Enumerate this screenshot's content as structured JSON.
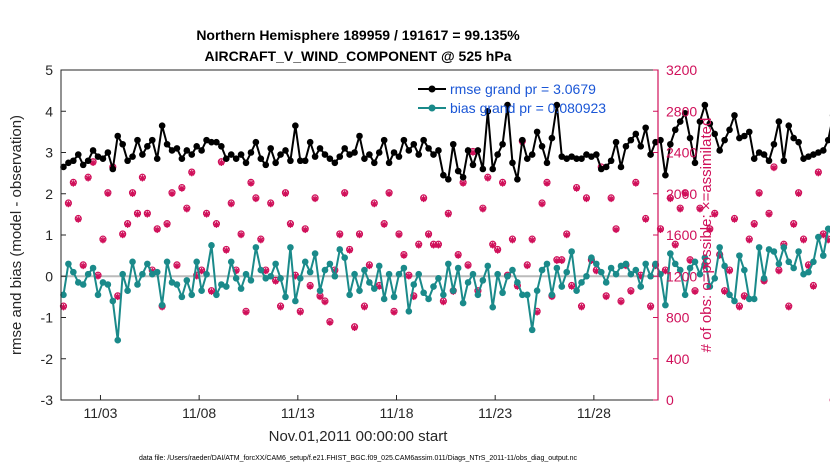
{
  "chart_data": {
    "type": "line",
    "title_line1": "Northern Hemisphere 189959 / 191617 = 99.135%",
    "title_line2": "AIRCRAFT_V_WIND_COMPONENT @ 525 hPa",
    "xlabel": "Nov.01,2011 00:00:00 start",
    "ylabel_left": "rmse and bias (model - observation)",
    "ylabel_right": "# of obs: o=possible; ×=assimilated",
    "footer": "data file: /Users/raeder/DAI/ATM_forcXX/CAM6_setup/f.e21.FHIST_BGC.f09_025.CAM6assim.011/Diags_NTrS_2011-11/obs_diag_output.nc",
    "x_tick_labels": [
      "11/03",
      "11/08",
      "11/13",
      "11/18",
      "11/23",
      "11/28"
    ],
    "x_tick_days": [
      3,
      8,
      13,
      18,
      23,
      28
    ],
    "xlim_days": [
      1,
      31.25
    ],
    "ylim_left": [
      -3,
      5
    ],
    "yticks_left": [
      "-3",
      "-2",
      "-1",
      "0",
      "1",
      "2",
      "3",
      "4",
      "5"
    ],
    "ylim_right": [
      0,
      3200
    ],
    "yticks_right": [
      "0",
      "400",
      "800",
      "1200",
      "1600",
      "2000",
      "2400",
      "2800",
      "3200"
    ],
    "legend": [
      {
        "name": "rmse grand pr = 3.0679",
        "color": "#000000"
      },
      {
        "name": "bias grand pr = 0.080923",
        "color": "#1a8a8a"
      }
    ],
    "colors": {
      "rmse": "#000000",
      "bias": "#1a8a8a",
      "obs": "#d0105a",
      "zero_line": "#bbbbbb"
    },
    "series": [
      {
        "name": "rmse",
        "values": [
          2.65,
          2.75,
          2.8,
          2.95,
          2.7,
          2.8,
          3.05,
          2.9,
          2.85,
          3.0,
          2.6,
          3.4,
          3.2,
          2.8,
          2.9,
          3.3,
          2.95,
          3.15,
          3.3,
          2.85,
          3.65,
          3.2,
          3.05,
          3.1,
          2.85,
          3.05,
          2.95,
          3.15,
          3.05,
          3.3,
          3.25,
          3.25,
          3.15,
          2.85,
          2.95,
          2.85,
          2.95,
          2.75,
          3.0,
          3.25,
          2.85,
          2.7,
          3.1,
          2.75,
          2.95,
          3.05,
          2.8,
          3.65,
          2.8,
          2.8,
          3.25,
          2.9,
          3.1,
          2.95,
          2.85,
          2.75,
          2.9,
          3.1,
          2.95,
          3.0,
          3.4,
          2.85,
          2.95,
          2.75,
          3.0,
          3.3,
          2.75,
          3.0,
          2.9,
          3.3,
          3.05,
          3.2,
          2.95,
          3.3,
          3.1,
          2.95,
          3.05,
          2.45,
          2.35,
          3.2,
          2.55,
          2.4,
          3.05,
          2.7,
          3.05,
          2.6,
          4.0,
          2.6,
          2.95,
          3.2,
          4.15,
          2.75,
          2.35,
          3.3,
          2.85,
          2.95,
          3.5,
          3.15,
          2.75,
          3.35,
          4.15,
          2.9,
          2.85,
          2.9,
          2.85,
          2.85,
          2.95,
          2.9,
          2.95,
          2.6,
          2.65,
          2.8,
          3.25,
          2.65,
          3.15,
          3.3,
          3.45,
          3.15,
          3.6,
          2.95,
          3.25,
          3.3,
          2.45,
          3.2,
          3.55,
          3.75,
          3.95,
          3.35,
          2.75,
          3.75,
          4.15,
          3.7,
          3.45,
          3.05,
          3.3,
          3.55,
          3.9,
          3.35,
          3.4,
          3.5,
          2.85,
          3.0,
          2.95,
          2.8,
          3.2,
          3.75,
          2.8,
          3.65,
          3.35,
          3.25,
          2.85,
          2.9,
          2.95,
          3.0,
          3.05,
          3.3,
          3.9,
          4.0,
          4.15
        ]
      },
      {
        "name": "bias",
        "values": [
          -0.45,
          0.3,
          0.1,
          -0.15,
          -0.2,
          0.05,
          0.2,
          -0.45,
          -0.15,
          -0.2,
          -0.6,
          -1.55,
          0.05,
          -0.35,
          0.35,
          -0.2,
          0.05,
          0.3,
          0.05,
          0.1,
          -0.7,
          0.35,
          -0.15,
          -0.2,
          -0.5,
          -0.1,
          -0.45,
          0.35,
          -0.35,
          0.05,
          0.75,
          -0.45,
          -0.2,
          -0.25,
          0.35,
          -0.05,
          -0.3,
          0.05,
          -0.1,
          0.7,
          0.15,
          -0.05,
          0.0,
          0.3,
          -0.05,
          -0.5,
          0.7,
          -0.6,
          -0.05,
          0.35,
          0.1,
          0.55,
          -0.35,
          0.15,
          0.3,
          0.0,
          0.65,
          0.45,
          -0.45,
          0.05,
          -0.35,
          0.15,
          -0.15,
          -0.3,
          0.25,
          -0.55,
          0.05,
          -0.5,
          0.05,
          0.2,
          -0.85,
          -0.2,
          0.05,
          -0.4,
          -0.55,
          -0.25,
          -0.05,
          -0.45,
          0.3,
          -0.35,
          0.2,
          -0.65,
          -0.15,
          0.05,
          -0.45,
          -0.1,
          0.25,
          -0.75,
          0.05,
          -0.4,
          0.0,
          0.15,
          -0.15,
          -0.45,
          -0.45,
          -1.3,
          -0.35,
          0.15,
          0.3,
          -0.45,
          0.2,
          -0.25,
          0.1,
          0.6,
          -0.35,
          -0.15,
          0.0,
          0.45,
          0.3,
          0.1,
          -0.15,
          0.2,
          0.05,
          0.25,
          0.3,
          0.05,
          0.15,
          -0.25,
          0.3,
          0.0,
          0.3,
          0.05,
          -0.7,
          0.55,
          0.3,
          0.15,
          -0.45,
          0.2,
          0.35,
          0.05,
          0.45,
          -0.25,
          -0.05,
          0.7,
          0.25,
          -0.45,
          -0.6,
          0.5,
          0.15,
          -0.55,
          -0.55,
          0.7,
          -0.05,
          0.65,
          0.6,
          0.3,
          0.7,
          0.35,
          0.2,
          0.6,
          0.05,
          0.1,
          0.35,
          0.95,
          0.5,
          1.15,
          0.95
        ]
      },
      {
        "name": "obs_assimilated",
        "values": [
          900,
          1900,
          2100,
          1750,
          1300,
          2150,
          2300,
          1200,
          1550,
          2000,
          2250,
          1000,
          1600,
          1700,
          2000,
          1800,
          2150,
          1800,
          1250,
          1650,
          900,
          1700,
          2000,
          1300,
          2050,
          1850,
          2200,
          1200,
          1250,
          1800,
          1050,
          1700,
          2300,
          1450,
          1900,
          1250,
          1600,
          850,
          2100,
          1950,
          1550,
          1250,
          1900,
          1150,
          900,
          2000,
          1700,
          1200,
          850,
          1650,
          1100,
          1950,
          1000,
          950,
          750,
          1250,
          1600,
          2000,
          1450,
          700,
          1600,
          900,
          1300,
          1900,
          1100,
          1700,
          2000,
          850,
          1600,
          1400,
          1200,
          1000,
          1500,
          1950,
          1600,
          1500,
          1500,
          950,
          1800,
          1050,
          1400,
          2100,
          1300,
          2400,
          1050,
          1850,
          2150,
          1500,
          1450,
          2100,
          1200,
          1550,
          1100,
          2500,
          1300,
          1550,
          850,
          1900,
          2100,
          1000,
          1350,
          1350,
          1600,
          1100,
          2050,
          900,
          1950,
          1350,
          1250,
          2250,
          1000,
          1950,
          1650,
          950,
          1300,
          1050,
          2100,
          1200,
          1750,
          900,
          1300,
          1650,
          1250,
          1950,
          1500,
          1850,
          2000,
          1350,
          1050,
          1850,
          1300,
          1650,
          1800,
          1400,
          1050,
          1250,
          1750,
          900,
          1000,
          1550,
          1700,
          2000,
          1150,
          1800,
          2250,
          1250,
          1500,
          900,
          1700,
          2000,
          1550,
          1300,
          1100,
          2200,
          1600,
          1550,
          0
        ]
      },
      {
        "name": "obs_possible",
        "values": [
          910,
          1910,
          2110,
          1760,
          1310,
          2160,
          2310,
          1210,
          1560,
          2010,
          2260,
          1010,
          1610,
          1710,
          2010,
          1810,
          2160,
          1810,
          1260,
          1660,
          910,
          1710,
          2010,
          1310,
          2060,
          1860,
          2210,
          1210,
          1260,
          1810,
          1060,
          1710,
          2310,
          1460,
          1910,
          1260,
          1610,
          860,
          2110,
          1960,
          1560,
          1260,
          1910,
          1160,
          910,
          2010,
          1710,
          1210,
          860,
          1660,
          1110,
          1960,
          1010,
          960,
          760,
          1260,
          1610,
          2010,
          1460,
          710,
          1610,
          910,
          1310,
          1910,
          1110,
          1710,
          2010,
          860,
          1610,
          1410,
          1210,
          1010,
          1510,
          1960,
          1610,
          1510,
          1510,
          960,
          1810,
          1060,
          1410,
          2110,
          1310,
          2410,
          1060,
          1860,
          2160,
          1510,
          1460,
          2110,
          1210,
          1560,
          1110,
          2510,
          1310,
          1560,
          860,
          1910,
          2110,
          1010,
          1360,
          1360,
          1610,
          1110,
          2060,
          910,
          1960,
          1360,
          1260,
          2260,
          1010,
          1960,
          1660,
          960,
          1310,
          1060,
          2110,
          1210,
          1760,
          910,
          1310,
          1660,
          1260,
          1960,
          1510,
          1860,
          2010,
          1360,
          1060,
          1860,
          1310,
          1660,
          1810,
          1410,
          1060,
          1260,
          1760,
          910,
          1010,
          1560,
          1710,
          2010,
          1160,
          1810,
          2260,
          1260,
          1510,
          910,
          1710,
          2010,
          1560,
          1310,
          1110,
          2210,
          1610,
          1560,
          0
        ]
      }
    ]
  }
}
